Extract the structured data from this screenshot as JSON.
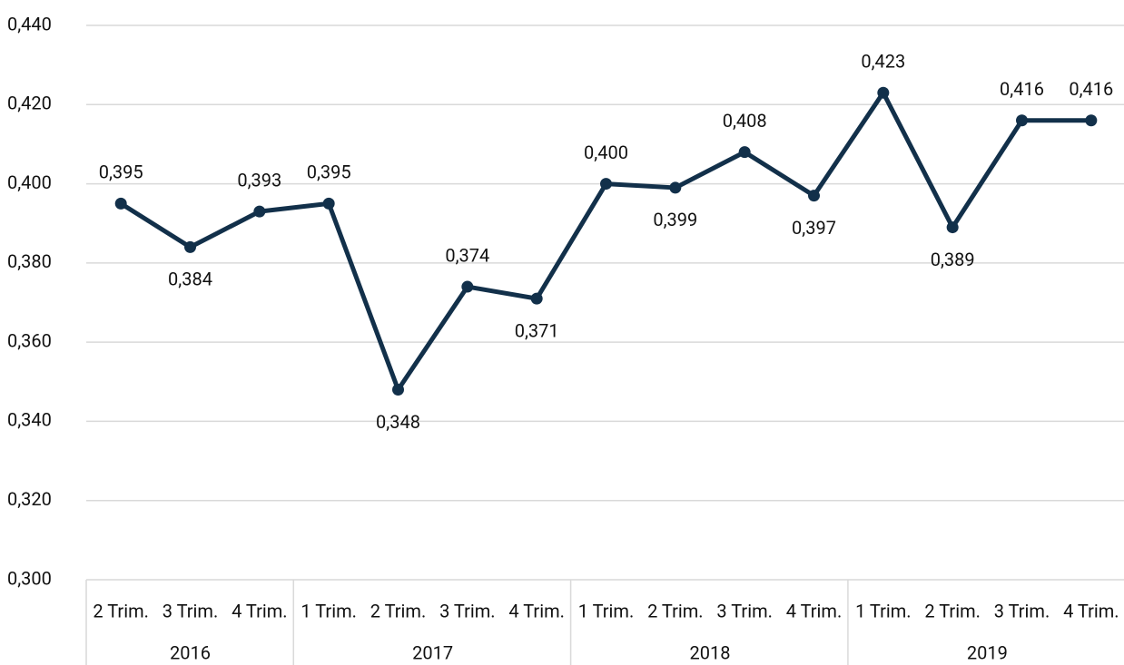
{
  "chart_data": {
    "type": "line",
    "groups": [
      {
        "name": "2016",
        "categories": [
          "2 Trim.",
          "3 Trim.",
          "4 Trim."
        ]
      },
      {
        "name": "2017",
        "categories": [
          "1 Trim.",
          "2 Trim.",
          "3 Trim.",
          "4 Trim."
        ]
      },
      {
        "name": "2018",
        "categories": [
          "1 Trim.",
          "2 Trim.",
          "3 Trim.",
          "4 Trim."
        ]
      },
      {
        "name": "2019",
        "categories": [
          "1 Trim.",
          "2 Trim.",
          "3 Trim.",
          "4 Trim."
        ]
      }
    ],
    "values": [
      0.395,
      0.384,
      0.393,
      0.395,
      0.348,
      0.374,
      0.371,
      0.4,
      0.399,
      0.408,
      0.397,
      0.423,
      0.389,
      0.416,
      0.416
    ],
    "value_labels": [
      "0,395",
      "0,384",
      "0,393",
      "0,395",
      "0,348",
      "0,374",
      "0,371",
      "0,400",
      "0,399",
      "0,408",
      "0,397",
      "0,423",
      "0,389",
      "0,416",
      "0,416"
    ],
    "color": "#12304a",
    "ylim": [
      0.3,
      0.44
    ],
    "yticks": [
      {
        "value": 0.3,
        "label": "0,300"
      },
      {
        "value": 0.32,
        "label": "0,320"
      },
      {
        "value": 0.34,
        "label": "0,340"
      },
      {
        "value": 0.36,
        "label": "0,360"
      },
      {
        "value": 0.38,
        "label": "0,380"
      },
      {
        "value": 0.4,
        "label": "0,400"
      },
      {
        "value": 0.42,
        "label": "0,420"
      },
      {
        "value": 0.44,
        "label": "0,440"
      }
    ],
    "grid": true
  }
}
